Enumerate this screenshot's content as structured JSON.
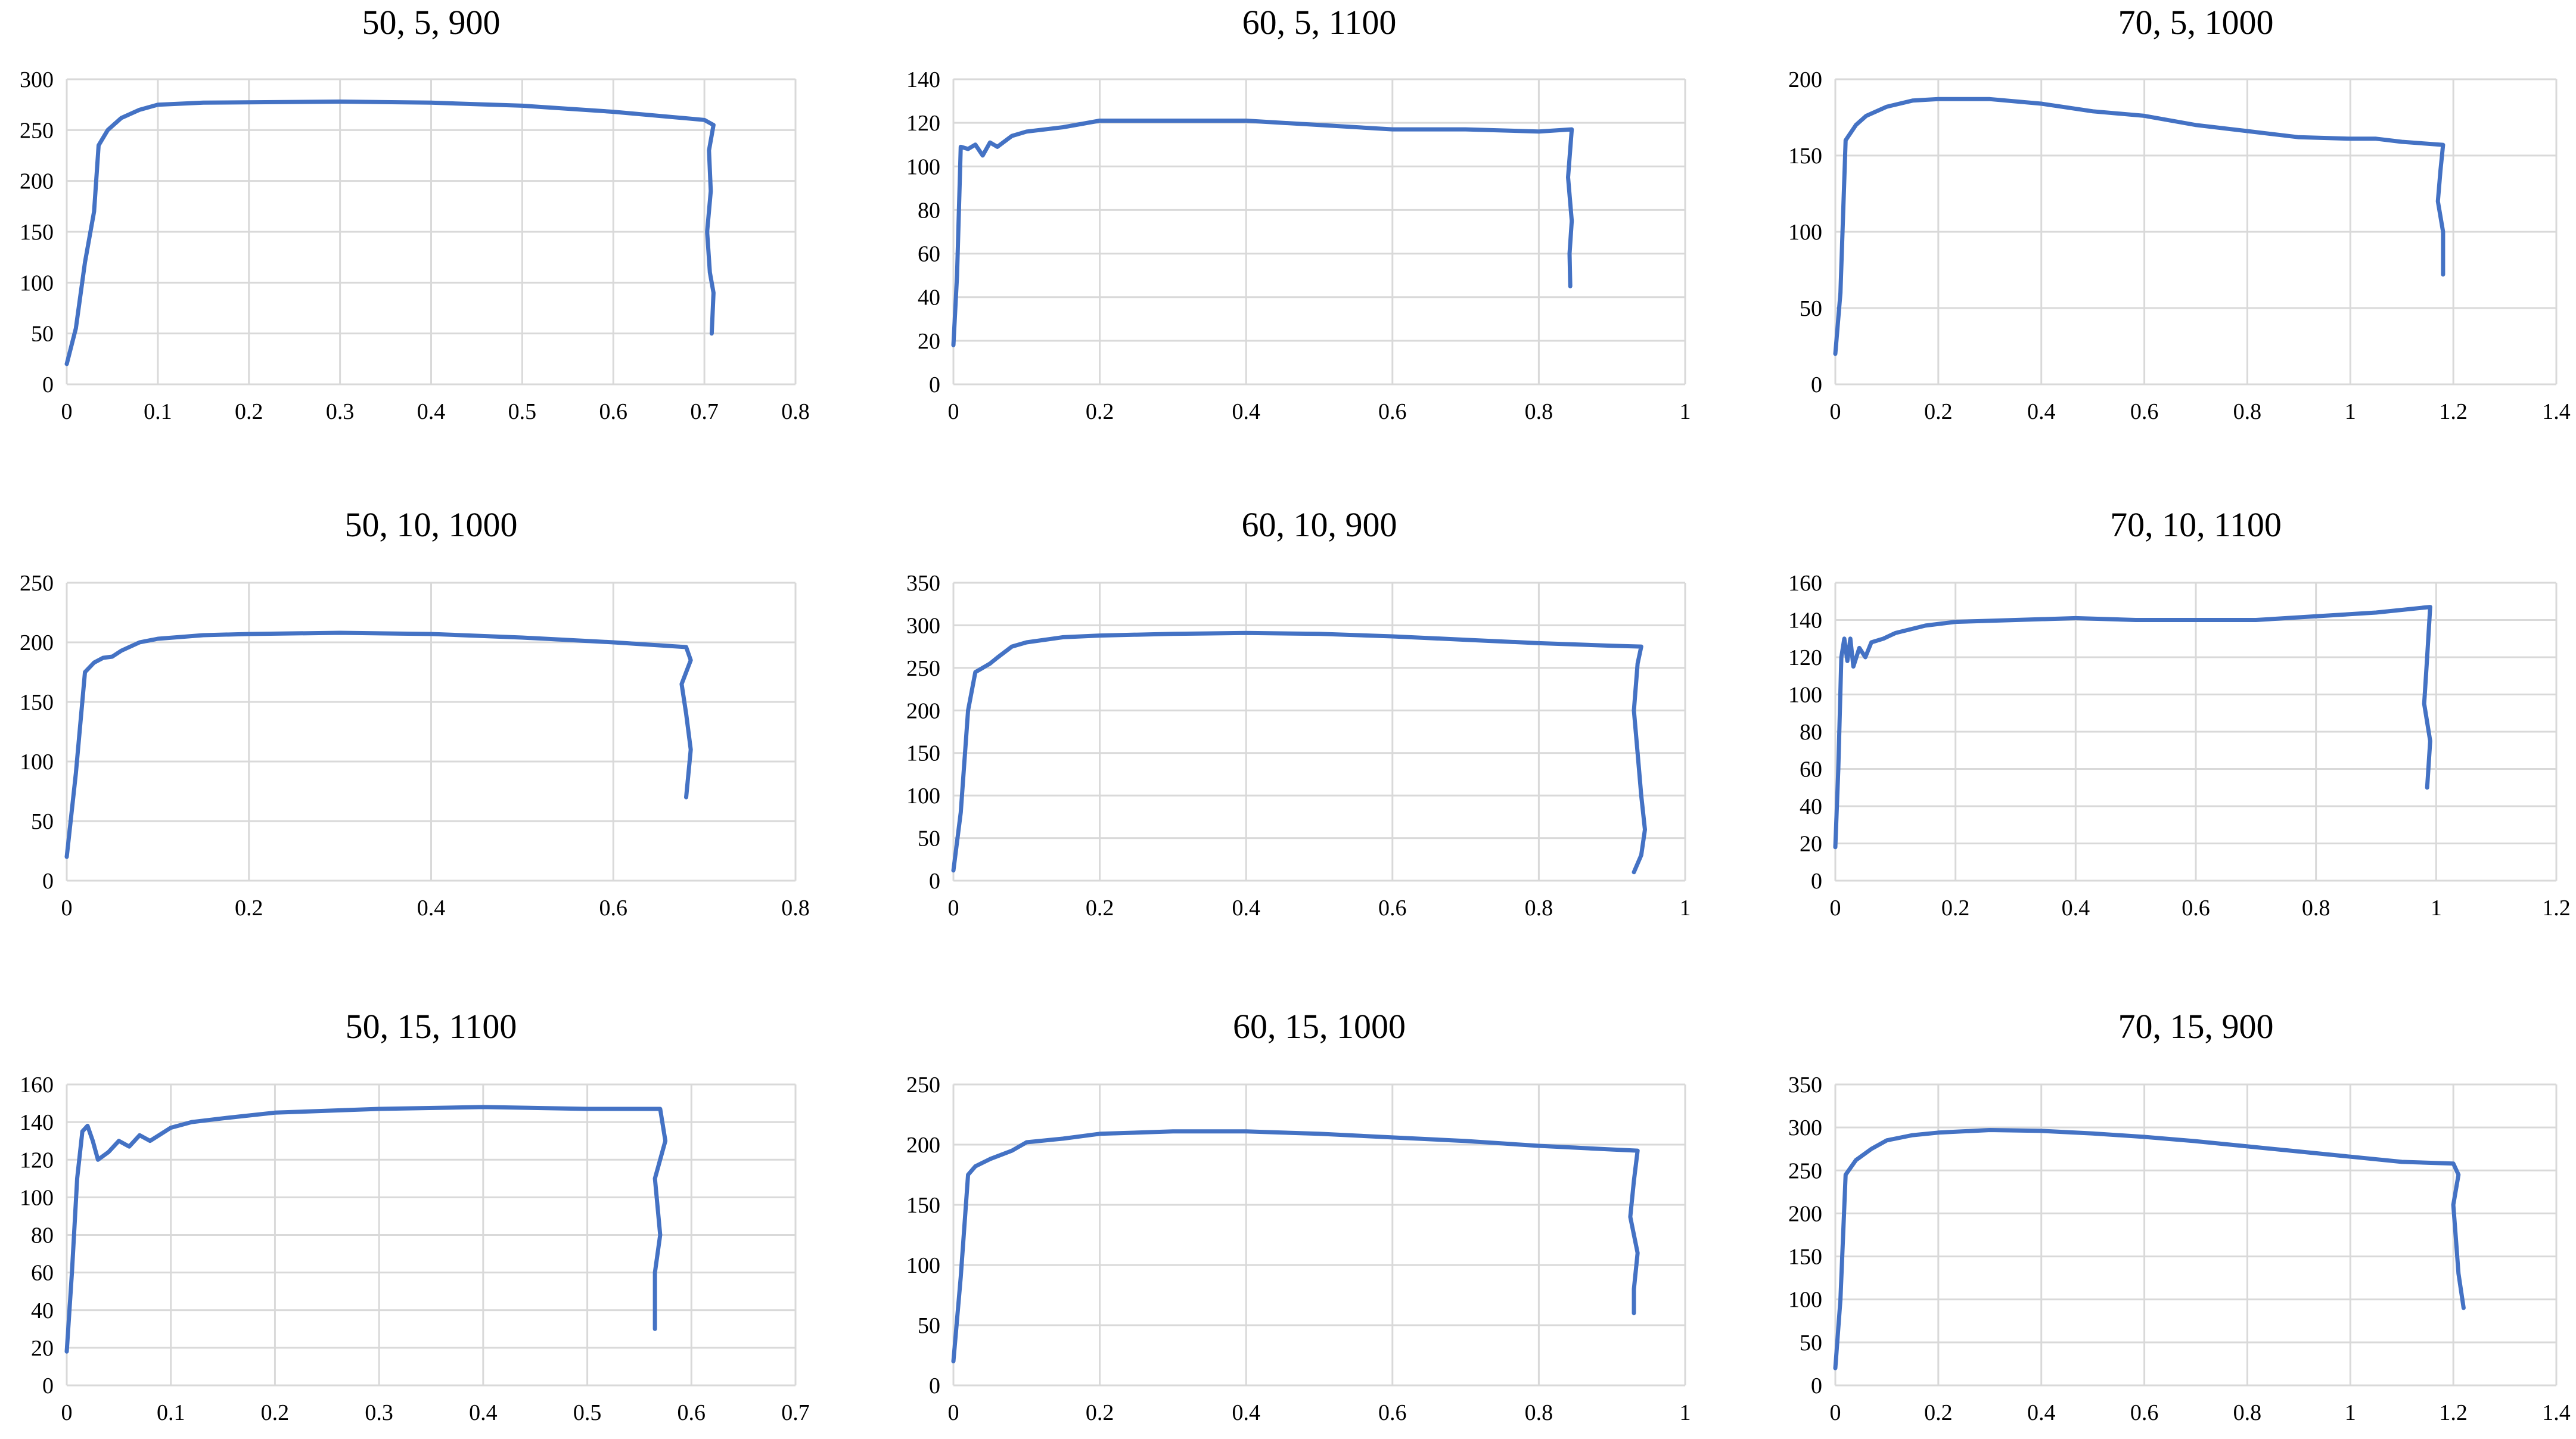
{
  "figure": {
    "line_color": "#4472c4",
    "grid_color": "#d9d9d9"
  },
  "chart_data": [
    {
      "type": "line",
      "title": "50, 5, 900",
      "xlim": [
        0,
        0.8
      ],
      "xticks": [
        0,
        0.1,
        0.2,
        0.3,
        0.4,
        0.5,
        0.6,
        0.7,
        0.8
      ],
      "ylim": [
        0,
        300
      ],
      "yticks": [
        0,
        50,
        100,
        150,
        200,
        250,
        300
      ],
      "grid": true,
      "series": [
        {
          "values": [
            [
              0,
              20
            ],
            [
              0.01,
              55
            ],
            [
              0.02,
              120
            ],
            [
              0.03,
              170
            ],
            [
              0.035,
              235
            ],
            [
              0.045,
              250
            ],
            [
              0.06,
              262
            ],
            [
              0.08,
              270
            ],
            [
              0.1,
              275
            ],
            [
              0.15,
              277
            ],
            [
              0.3,
              278
            ],
            [
              0.4,
              277
            ],
            [
              0.5,
              274
            ],
            [
              0.6,
              268
            ],
            [
              0.7,
              260
            ],
            [
              0.71,
              255
            ],
            [
              0.705,
              230
            ],
            [
              0.707,
              190
            ],
            [
              0.703,
              150
            ],
            [
              0.706,
              110
            ],
            [
              0.71,
              90
            ],
            [
              0.708,
              50
            ]
          ]
        }
      ]
    },
    {
      "type": "line",
      "title": "60, 5, 1100",
      "xlim": [
        0,
        1
      ],
      "xticks": [
        0,
        0.2,
        0.4,
        0.6,
        0.8,
        1
      ],
      "ylim": [
        0,
        140
      ],
      "yticks": [
        0,
        20,
        40,
        60,
        80,
        100,
        120,
        140
      ],
      "grid": true,
      "series": [
        {
          "values": [
            [
              0,
              18
            ],
            [
              0.005,
              50
            ],
            [
              0.01,
              109
            ],
            [
              0.02,
              108
            ],
            [
              0.03,
              110
            ],
            [
              0.04,
              105
            ],
            [
              0.05,
              111
            ],
            [
              0.06,
              109
            ],
            [
              0.08,
              114
            ],
            [
              0.1,
              116
            ],
            [
              0.15,
              118
            ],
            [
              0.2,
              121
            ],
            [
              0.3,
              121
            ],
            [
              0.4,
              121
            ],
            [
              0.5,
              119
            ],
            [
              0.6,
              117
            ],
            [
              0.7,
              117
            ],
            [
              0.8,
              116
            ],
            [
              0.845,
              117
            ],
            [
              0.84,
              95
            ],
            [
              0.845,
              75
            ],
            [
              0.842,
              60
            ],
            [
              0.843,
              45
            ]
          ]
        }
      ]
    },
    {
      "type": "line",
      "title": "70, 5, 1000",
      "xlim": [
        0,
        1.4
      ],
      "xticks": [
        0,
        0.2,
        0.4,
        0.6,
        0.8,
        1,
        1.2,
        1.4
      ],
      "ylim": [
        0,
        200
      ],
      "yticks": [
        0,
        50,
        100,
        150,
        200
      ],
      "grid": true,
      "series": [
        {
          "values": [
            [
              0,
              20
            ],
            [
              0.01,
              60
            ],
            [
              0.02,
              160
            ],
            [
              0.04,
              170
            ],
            [
              0.06,
              176
            ],
            [
              0.1,
              182
            ],
            [
              0.15,
              186
            ],
            [
              0.2,
              187
            ],
            [
              0.3,
              187
            ],
            [
              0.4,
              184
            ],
            [
              0.5,
              179
            ],
            [
              0.6,
              176
            ],
            [
              0.7,
              170
            ],
            [
              0.8,
              166
            ],
            [
              0.9,
              162
            ],
            [
              1,
              161
            ],
            [
              1.05,
              161
            ],
            [
              1.1,
              159
            ],
            [
              1.18,
              157
            ],
            [
              1.175,
              140
            ],
            [
              1.17,
              120
            ],
            [
              1.18,
              100
            ],
            [
              1.18,
              72
            ]
          ]
        }
      ]
    },
    {
      "type": "line",
      "title": "50, 10, 1000",
      "xlim": [
        0,
        0.8
      ],
      "xticks": [
        0,
        0.2,
        0.4,
        0.6,
        0.8
      ],
      "ylim": [
        0,
        250
      ],
      "yticks": [
        0,
        50,
        100,
        150,
        200,
        250
      ],
      "grid": true,
      "series": [
        {
          "values": [
            [
              0,
              20
            ],
            [
              0.01,
              90
            ],
            [
              0.02,
              175
            ],
            [
              0.03,
              183
            ],
            [
              0.04,
              187
            ],
            [
              0.05,
              188
            ],
            [
              0.06,
              193
            ],
            [
              0.08,
              200
            ],
            [
              0.1,
              203
            ],
            [
              0.15,
              206
            ],
            [
              0.2,
              207
            ],
            [
              0.3,
              208
            ],
            [
              0.4,
              207
            ],
            [
              0.5,
              204
            ],
            [
              0.6,
              200
            ],
            [
              0.68,
              196
            ],
            [
              0.685,
              185
            ],
            [
              0.675,
              165
            ],
            [
              0.68,
              140
            ],
            [
              0.685,
              110
            ],
            [
              0.68,
              70
            ]
          ]
        }
      ]
    },
    {
      "type": "line",
      "title": "60, 10, 900",
      "xlim": [
        0,
        1
      ],
      "xticks": [
        0,
        0.2,
        0.4,
        0.6,
        0.8,
        1
      ],
      "ylim": [
        0,
        350
      ],
      "yticks": [
        0,
        50,
        100,
        150,
        200,
        250,
        300,
        350
      ],
      "grid": true,
      "series": [
        {
          "values": [
            [
              0,
              12
            ],
            [
              0.01,
              80
            ],
            [
              0.02,
              200
            ],
            [
              0.03,
              245
            ],
            [
              0.05,
              255
            ],
            [
              0.06,
              262
            ],
            [
              0.08,
              275
            ],
            [
              0.1,
              280
            ],
            [
              0.15,
              286
            ],
            [
              0.2,
              288
            ],
            [
              0.3,
              290
            ],
            [
              0.4,
              291
            ],
            [
              0.5,
              290
            ],
            [
              0.6,
              287
            ],
            [
              0.7,
              283
            ],
            [
              0.8,
              279
            ],
            [
              0.9,
              276
            ],
            [
              0.94,
              275
            ],
            [
              0.935,
              255
            ],
            [
              0.93,
              200
            ],
            [
              0.935,
              150
            ],
            [
              0.94,
              100
            ],
            [
              0.945,
              60
            ],
            [
              0.94,
              30
            ],
            [
              0.93,
              10
            ]
          ]
        }
      ]
    },
    {
      "type": "line",
      "title": "70, 10, 1100",
      "xlim": [
        0,
        1.2
      ],
      "xticks": [
        0,
        0.2,
        0.4,
        0.6,
        0.8,
        1,
        1.2
      ],
      "ylim": [
        0,
        160
      ],
      "yticks": [
        0,
        20,
        40,
        60,
        80,
        100,
        120,
        140,
        160
      ],
      "grid": true,
      "series": [
        {
          "values": [
            [
              0,
              18
            ],
            [
              0.005,
              60
            ],
            [
              0.01,
              120
            ],
            [
              0.015,
              130
            ],
            [
              0.02,
              118
            ],
            [
              0.025,
              130
            ],
            [
              0.03,
              115
            ],
            [
              0.04,
              125
            ],
            [
              0.05,
              120
            ],
            [
              0.06,
              128
            ],
            [
              0.08,
              130
            ],
            [
              0.1,
              133
            ],
            [
              0.15,
              137
            ],
            [
              0.2,
              139
            ],
            [
              0.3,
              140
            ],
            [
              0.4,
              141
            ],
            [
              0.5,
              140
            ],
            [
              0.6,
              140
            ],
            [
              0.7,
              140
            ],
            [
              0.8,
              142
            ],
            [
              0.9,
              144
            ],
            [
              0.99,
              147
            ],
            [
              0.985,
              120
            ],
            [
              0.98,
              95
            ],
            [
              0.99,
              75
            ],
            [
              0.985,
              50
            ]
          ]
        }
      ]
    },
    {
      "type": "line",
      "title": "50, 15, 1100",
      "xlim": [
        0,
        0.7
      ],
      "xticks": [
        0,
        0.1,
        0.2,
        0.3,
        0.4,
        0.5,
        0.6,
        0.7
      ],
      "ylim": [
        0,
        160
      ],
      "yticks": [
        0,
        20,
        40,
        60,
        80,
        100,
        120,
        140,
        160
      ],
      "grid": true,
      "series": [
        {
          "values": [
            [
              0,
              18
            ],
            [
              0.005,
              60
            ],
            [
              0.01,
              110
            ],
            [
              0.015,
              135
            ],
            [
              0.02,
              138
            ],
            [
              0.025,
              130
            ],
            [
              0.03,
              120
            ],
            [
              0.04,
              124
            ],
            [
              0.05,
              130
            ],
            [
              0.06,
              127
            ],
            [
              0.07,
              133
            ],
            [
              0.08,
              130
            ],
            [
              0.1,
              137
            ],
            [
              0.12,
              140
            ],
            [
              0.15,
              142
            ],
            [
              0.2,
              145
            ],
            [
              0.3,
              147
            ],
            [
              0.4,
              148
            ],
            [
              0.5,
              147
            ],
            [
              0.57,
              147
            ],
            [
              0.575,
              130
            ],
            [
              0.565,
              110
            ],
            [
              0.57,
              80
            ],
            [
              0.565,
              60
            ],
            [
              0.565,
              30
            ]
          ]
        }
      ]
    },
    {
      "type": "line",
      "title": "60, 15, 1000",
      "xlim": [
        0,
        1
      ],
      "xticks": [
        0,
        0.2,
        0.4,
        0.6,
        0.8,
        1
      ],
      "ylim": [
        0,
        250
      ],
      "yticks": [
        0,
        50,
        100,
        150,
        200,
        250
      ],
      "grid": true,
      "series": [
        {
          "values": [
            [
              0,
              20
            ],
            [
              0.01,
              90
            ],
            [
              0.02,
              175
            ],
            [
              0.03,
              182
            ],
            [
              0.05,
              188
            ],
            [
              0.08,
              195
            ],
            [
              0.1,
              202
            ],
            [
              0.15,
              205
            ],
            [
              0.2,
              209
            ],
            [
              0.3,
              211
            ],
            [
              0.4,
              211
            ],
            [
              0.5,
              209
            ],
            [
              0.6,
              206
            ],
            [
              0.7,
              203
            ],
            [
              0.8,
              199
            ],
            [
              0.9,
              196
            ],
            [
              0.935,
              195
            ],
            [
              0.93,
              170
            ],
            [
              0.925,
              140
            ],
            [
              0.935,
              110
            ],
            [
              0.93,
              80
            ],
            [
              0.93,
              60
            ]
          ]
        }
      ]
    },
    {
      "type": "line",
      "title": "70, 15, 900",
      "xlim": [
        0,
        1.4
      ],
      "xticks": [
        0,
        0.2,
        0.4,
        0.6,
        0.8,
        1,
        1.2,
        1.4
      ],
      "ylim": [
        0,
        350
      ],
      "yticks": [
        0,
        50,
        100,
        150,
        200,
        250,
        300,
        350
      ],
      "grid": true,
      "series": [
        {
          "values": [
            [
              0,
              20
            ],
            [
              0.01,
              100
            ],
            [
              0.02,
              245
            ],
            [
              0.04,
              262
            ],
            [
              0.07,
              275
            ],
            [
              0.1,
              285
            ],
            [
              0.15,
              291
            ],
            [
              0.2,
              294
            ],
            [
              0.3,
              297
            ],
            [
              0.4,
              296
            ],
            [
              0.5,
              293
            ],
            [
              0.6,
              289
            ],
            [
              0.7,
              284
            ],
            [
              0.8,
              278
            ],
            [
              0.9,
              272
            ],
            [
              1,
              266
            ],
            [
              1.1,
              260
            ],
            [
              1.2,
              258
            ],
            [
              1.21,
              245
            ],
            [
              1.2,
              210
            ],
            [
              1.205,
              170
            ],
            [
              1.21,
              130
            ],
            [
              1.22,
              90
            ]
          ]
        }
      ]
    }
  ]
}
